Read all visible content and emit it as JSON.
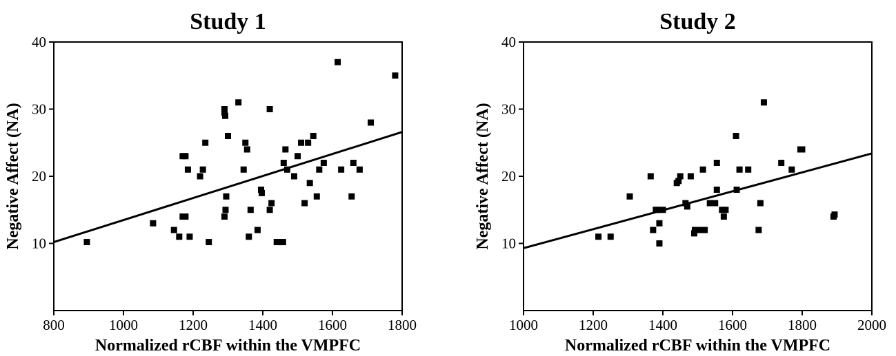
{
  "chart_data": [
    {
      "type": "scatter",
      "title": "Study 1",
      "xlabel": "Normalized rCBF within the VMPFC",
      "ylabel": "Negative Affect (NA)",
      "xlim": [
        800,
        1800
      ],
      "ylim": [
        0,
        40
      ],
      "xticks": [
        800,
        1000,
        1200,
        1400,
        1600,
        1800
      ],
      "yticks": [
        10,
        20,
        30,
        40
      ],
      "grid": false,
      "regression_line": {
        "x": [
          800,
          1800
        ],
        "y": [
          10.2,
          26.6
        ]
      },
      "points": [
        [
          895,
          10.2
        ],
        [
          1085,
          13
        ],
        [
          1145,
          12
        ],
        [
          1160,
          11
        ],
        [
          1170,
          23
        ],
        [
          1178,
          23
        ],
        [
          1170,
          14
        ],
        [
          1178,
          14
        ],
        [
          1185,
          21
        ],
        [
          1190,
          11
        ],
        [
          1220,
          20
        ],
        [
          1228,
          21
        ],
        [
          1235,
          25
        ],
        [
          1245,
          10.2
        ],
        [
          1290,
          14
        ],
        [
          1293,
          15
        ],
        [
          1295,
          17
        ],
        [
          1290,
          30
        ],
        [
          1290,
          29.5
        ],
        [
          1292,
          29
        ],
        [
          1300,
          26
        ],
        [
          1330,
          31
        ],
        [
          1345,
          21
        ],
        [
          1350,
          25
        ],
        [
          1355,
          24
        ],
        [
          1360,
          11
        ],
        [
          1365,
          15
        ],
        [
          1385,
          12
        ],
        [
          1395,
          18
        ],
        [
          1397,
          17.5
        ],
        [
          1420,
          15
        ],
        [
          1420,
          30
        ],
        [
          1425,
          16
        ],
        [
          1440,
          10.2
        ],
        [
          1450,
          10.2
        ],
        [
          1458,
          10.2
        ],
        [
          1460,
          22
        ],
        [
          1465,
          24
        ],
        [
          1470,
          21
        ],
        [
          1490,
          20
        ],
        [
          1500,
          23
        ],
        [
          1510,
          25
        ],
        [
          1520,
          16
        ],
        [
          1530,
          25
        ],
        [
          1535,
          19
        ],
        [
          1545,
          26
        ],
        [
          1555,
          17
        ],
        [
          1562,
          21
        ],
        [
          1575,
          22
        ],
        [
          1615,
          37
        ],
        [
          1625,
          21
        ],
        [
          1655,
          17
        ],
        [
          1660,
          22
        ],
        [
          1678,
          21
        ],
        [
          1710,
          28
        ],
        [
          1780,
          35
        ]
      ]
    },
    {
      "type": "scatter",
      "title": "Study 2",
      "xlabel": "Normalized rCBF within the VMPFC",
      "ylabel": "Negative Affect (NA)",
      "xlim": [
        1000,
        2000
      ],
      "ylim": [
        0,
        40
      ],
      "xticks": [
        1000,
        1200,
        1400,
        1600,
        1800,
        2000
      ],
      "yticks": [
        10,
        20,
        30,
        40
      ],
      "grid": false,
      "regression_line": {
        "x": [
          1000,
          2000
        ],
        "y": [
          9.3,
          23.4
        ]
      },
      "points": [
        [
          1215,
          11
        ],
        [
          1250,
          11
        ],
        [
          1305,
          17
        ],
        [
          1365,
          20
        ],
        [
          1372,
          12
        ],
        [
          1380,
          15
        ],
        [
          1385,
          15
        ],
        [
          1390,
          13
        ],
        [
          1390,
          10
        ],
        [
          1400,
          15
        ],
        [
          1440,
          19
        ],
        [
          1445,
          19.3
        ],
        [
          1450,
          20
        ],
        [
          1465,
          16
        ],
        [
          1470,
          15.5
        ],
        [
          1480,
          20
        ],
        [
          1490,
          11.5
        ],
        [
          1492,
          12
        ],
        [
          1505,
          12
        ],
        [
          1515,
          21
        ],
        [
          1520,
          12
        ],
        [
          1535,
          16
        ],
        [
          1550,
          16
        ],
        [
          1555,
          22
        ],
        [
          1555,
          18
        ],
        [
          1570,
          15
        ],
        [
          1575,
          14
        ],
        [
          1580,
          15
        ],
        [
          1610,
          26
        ],
        [
          1612,
          18
        ],
        [
          1620,
          21
        ],
        [
          1645,
          21
        ],
        [
          1675,
          12
        ],
        [
          1680,
          16
        ],
        [
          1690,
          31
        ],
        [
          1740,
          22
        ],
        [
          1770,
          21
        ],
        [
          1795,
          24
        ],
        [
          1800,
          24
        ],
        [
          1890,
          14
        ],
        [
          1893,
          14.3
        ]
      ]
    }
  ]
}
